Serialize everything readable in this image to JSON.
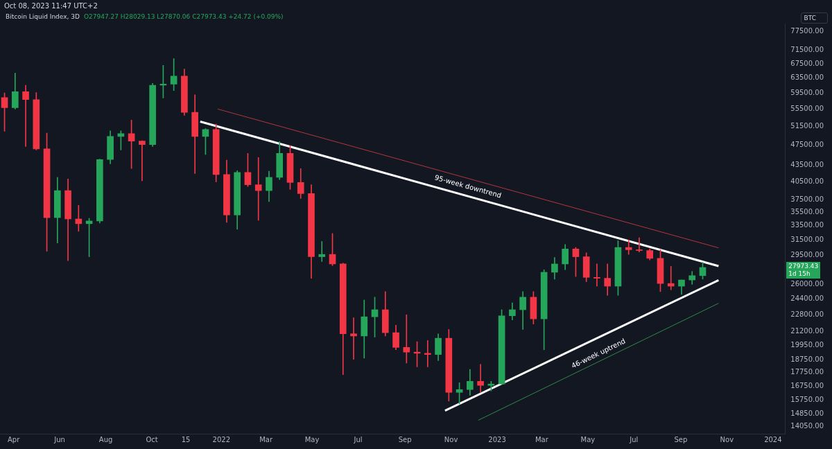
{
  "chart_data": {
    "type": "candlestick",
    "title": "Bitcoin Liquid Index, 3D",
    "subtitle": "O27947.27 H28029.13 L27870.06 C27973.43 +24.72 (+0.09%)",
    "annotations": [
      "Oct 08, 2023 11:47 UTC+2",
      "BTC",
      "27973.43",
      "1d 15h",
      "95-week downtrend",
      "46-week uptrend"
    ],
    "x": [
      "2021-03-20",
      "2021-04-03",
      "2021-04-17",
      "2021-05-01",
      "2021-05-15",
      "2021-05-29",
      "2021-06-12",
      "2021-06-26",
      "2021-07-10",
      "2021-07-24",
      "2021-08-07",
      "2021-08-21",
      "2021-09-04",
      "2021-09-18",
      "2021-10-02",
      "2021-10-16",
      "2021-10-30",
      "2021-11-13",
      "2021-11-27",
      "2021-12-11",
      "2021-12-25",
      "2022-01-08",
      "2022-01-22",
      "2022-02-05",
      "2022-02-19",
      "2022-03-05",
      "2022-03-19",
      "2022-04-02",
      "2022-04-16",
      "2022-04-30",
      "2022-05-14",
      "2022-05-28",
      "2022-06-11",
      "2022-06-25",
      "2022-07-09",
      "2022-07-23",
      "2022-08-06",
      "2022-08-20",
      "2022-09-03",
      "2022-09-17",
      "2022-10-01",
      "2022-10-15",
      "2022-10-29",
      "2022-11-12",
      "2022-11-26",
      "2022-12-10",
      "2022-12-24",
      "2023-01-07",
      "2023-01-21",
      "2023-02-04",
      "2023-02-18",
      "2023-03-04",
      "2023-03-18",
      "2023-04-01",
      "2023-04-15",
      "2023-04-29",
      "2023-05-13",
      "2023-05-27",
      "2023-06-10",
      "2023-06-24",
      "2023-07-08",
      "2023-07-22",
      "2023-08-05",
      "2023-08-19",
      "2023-09-02",
      "2023-09-16",
      "2023-09-30"
    ],
    "ohlc": [
      [
        58300,
        59500,
        50400,
        55800
      ],
      [
        55800,
        64800,
        55500,
        59800
      ],
      [
        59800,
        61500,
        47200,
        57800
      ],
      [
        57800,
        59600,
        46500,
        46700
      ],
      [
        46700,
        50000,
        30000,
        34700
      ],
      [
        34700,
        41300,
        31100,
        39000
      ],
      [
        39000,
        41000,
        28800,
        34500
      ],
      [
        34500,
        36600,
        32700,
        33800
      ],
      [
        33800,
        34600,
        29300,
        34200
      ],
      [
        34200,
        44700,
        33900,
        44600
      ],
      [
        44600,
        50500,
        43800,
        49300
      ],
      [
        49300,
        50500,
        46500,
        49900
      ],
      [
        49900,
        52900,
        42900,
        48300
      ],
      [
        48300,
        48400,
        40700,
        47600
      ],
      [
        47600,
        62000,
        47200,
        61500
      ],
      [
        61500,
        67000,
        58200,
        61800
      ],
      [
        61800,
        69000,
        60100,
        64000
      ],
      [
        64000,
        66000,
        54000,
        54700
      ],
      [
        54700,
        59000,
        42000,
        49300
      ],
      [
        49300,
        51000,
        45600,
        50800
      ],
      [
        50800,
        52000,
        40500,
        41800
      ],
      [
        41800,
        44500,
        34000,
        35100
      ],
      [
        35100,
        42500,
        33000,
        42200
      ],
      [
        42200,
        45800,
        39700,
        40000
      ],
      [
        40000,
        45000,
        34300,
        39000
      ],
      [
        39000,
        42400,
        37200,
        41300
      ],
      [
        41300,
        48200,
        40900,
        45800
      ],
      [
        45800,
        47400,
        39200,
        40400
      ],
      [
        40400,
        42900,
        37700,
        38500
      ],
      [
        38500,
        40000,
        26700,
        29300
      ],
      [
        29300,
        31300,
        28700,
        29600
      ],
      [
        29600,
        32400,
        28200,
        28400
      ],
      [
        28400,
        28500,
        17600,
        21000
      ],
      [
        21000,
        22500,
        18800,
        20800
      ],
      [
        20800,
        24300,
        18900,
        22600
      ],
      [
        22600,
        24600,
        20700,
        23300
      ],
      [
        23300,
        25200,
        20800,
        21100
      ],
      [
        21100,
        21800,
        19600,
        19800
      ],
      [
        19800,
        22800,
        18500,
        19400
      ],
      [
        19400,
        20300,
        18200,
        19300
      ],
      [
        19300,
        20400,
        18200,
        19200
      ],
      [
        19200,
        21000,
        18700,
        20600
      ],
      [
        20600,
        21400,
        15700,
        16300
      ],
      [
        16300,
        17000,
        15500,
        16500
      ],
      [
        16500,
        18000,
        16100,
        17100
      ],
      [
        17100,
        18400,
        16300,
        16800
      ],
      [
        16800,
        17100,
        16400,
        16900
      ],
      [
        16900,
        23300,
        16900,
        22700
      ],
      [
        22700,
        24000,
        22300,
        23300
      ],
      [
        23300,
        25200,
        21400,
        24600
      ],
      [
        24600,
        25200,
        21900,
        22400
      ],
      [
        22400,
        27700,
        19600,
        27400
      ],
      [
        27400,
        29200,
        26600,
        28400
      ],
      [
        28400,
        30900,
        27700,
        30300
      ],
      [
        30300,
        30500,
        26900,
        29300
      ],
      [
        29300,
        29800,
        26300,
        26800
      ],
      [
        26800,
        28400,
        25800,
        26700
      ],
      [
        26700,
        28400,
        24800,
        25800
      ],
      [
        25800,
        31400,
        24800,
        30500
      ],
      [
        30500,
        31500,
        29600,
        30200
      ],
      [
        30200,
        31800,
        29900,
        30100
      ],
      [
        30100,
        30300,
        28900,
        29100
      ],
      [
        29100,
        30200,
        25200,
        26100
      ],
      [
        26100,
        28100,
        25400,
        25800
      ],
      [
        25800,
        26500,
        24900,
        26500
      ],
      [
        26500,
        27500,
        26000,
        27000
      ],
      [
        27000,
        28600,
        26600,
        27973.43
      ]
    ],
    "colors": [
      "#f23645",
      "#26a65b",
      "#f23645",
      "#f23645",
      "#f23645",
      "#26a65b",
      "#f23645",
      "#f23645",
      "#26a65b",
      "#26a65b",
      "#26a65b",
      "#26a65b",
      "#f23645",
      "#f23645",
      "#26a65b",
      "#26a65b",
      "#26a65b",
      "#f23645",
      "#f23645",
      "#26a65b",
      "#f23645",
      "#f23645",
      "#26a65b",
      "#f23645",
      "#f23645",
      "#26a65b",
      "#26a65b",
      "#f23645",
      "#f23645",
      "#f23645",
      "#26a65b",
      "#f23645",
      "#f23645",
      "#f23645",
      "#26a65b",
      "#26a65b",
      "#f23645",
      "#f23645",
      "#f23645",
      "#f23645",
      "#f23645",
      "#26a65b",
      "#f23645",
      "#26a65b",
      "#26a65b",
      "#f23645",
      "#26a65b",
      "#26a65b",
      "#26a65b",
      "#26a65b",
      "#f23645",
      "#26a65b",
      "#26a65b",
      "#26a65b",
      "#f23645",
      "#f23645",
      "#f23645",
      "#f23645",
      "#26a65b",
      "#f23645",
      "#f23645",
      "#f23645",
      "#f23645",
      "#f23645",
      "#26a65b",
      "#26a65b",
      "#26a65b"
    ],
    "series": [
      {
        "type": "line",
        "color": "#ffffff",
        "x": [
          "2021-12-04",
          "2023-10-21"
        ],
        "values": [
          52560,
          28140
        ]
      },
      {
        "type": "line",
        "color": "#ffffff",
        "x": [
          "2022-10-24",
          "2023-10-21"
        ],
        "values": [
          15060,
          26480
        ]
      },
      {
        "type": "line",
        "color": "#b2363e",
        "x": [
          "2021-12-27",
          "2023-10-21"
        ],
        "values": [
          55500,
          30450
        ]
      },
      {
        "type": "line",
        "color": "#2f8a4a",
        "x": [
          "2022-12-07",
          "2023-10-21"
        ],
        "values": [
          14450,
          23960
        ]
      }
    ],
    "xlim": [
      "2021-03-14",
      "2024-01-17"
    ],
    "xticks": [
      {
        "value": "2021-04-01",
        "label": "Apr"
      },
      {
        "value": "2021-06-01",
        "label": "Jun"
      },
      {
        "value": "2021-08-01",
        "label": "Aug"
      },
      {
        "value": "2021-10-01",
        "label": "Oct"
      },
      {
        "value": "2021-11-15",
        "label": "15"
      },
      {
        "value": "2022-01-01",
        "label": "2022"
      },
      {
        "value": "2022-03-01",
        "label": "Mar"
      },
      {
        "value": "2022-05-01",
        "label": "May"
      },
      {
        "value": "2022-07-01",
        "label": "Jul"
      },
      {
        "value": "2022-09-01",
        "label": "Sep"
      },
      {
        "value": "2022-11-01",
        "label": "Nov"
      },
      {
        "value": "2023-01-01",
        "label": "2023"
      },
      {
        "value": "2023-03-01",
        "label": "Mar"
      },
      {
        "value": "2023-05-01",
        "label": "May"
      },
      {
        "value": "2023-07-01",
        "label": "Jul"
      },
      {
        "value": "2023-09-01",
        "label": "Sep"
      },
      {
        "value": "2023-11-01",
        "label": "Nov"
      },
      {
        "value": "2024-01-01",
        "label": "2024"
      }
    ],
    "ylim": [
      13630,
      80300
    ],
    "yticks": [
      {
        "value": 14050,
        "label": "14050.00"
      },
      {
        "value": 14850,
        "label": "14850.00"
      },
      {
        "value": 15750,
        "label": "15750.00"
      },
      {
        "value": 16750,
        "label": "16750.00"
      },
      {
        "value": 17750,
        "label": "17750.00"
      },
      {
        "value": 18750,
        "label": "18750.00"
      },
      {
        "value": 19950,
        "label": "19950.00"
      },
      {
        "value": 21200,
        "label": "21200.00"
      },
      {
        "value": 22800,
        "label": "22800.00"
      },
      {
        "value": 24400,
        "label": "24400.00"
      },
      {
        "value": 26000,
        "label": "26000.00"
      },
      {
        "value": 29500,
        "label": "29500.00"
      },
      {
        "value": 31500,
        "label": "31500.00"
      },
      {
        "value": 33500,
        "label": "33500.00"
      },
      {
        "value": 35500,
        "label": "35500.00"
      },
      {
        "value": 37500,
        "label": "37500.00"
      },
      {
        "value": 40500,
        "label": "40500.00"
      },
      {
        "value": 43500,
        "label": "43500.00"
      },
      {
        "value": 47500,
        "label": "47500.00"
      },
      {
        "value": 51500,
        "label": "51500.00"
      },
      {
        "value": 55500,
        "label": "55500.00"
      },
      {
        "value": 59500,
        "label": "59500.00"
      },
      {
        "value": 63500,
        "label": "63500.00"
      },
      {
        "value": 67500,
        "label": "67500.00"
      },
      {
        "value": 71500,
        "label": "71500.00"
      },
      {
        "value": 77500,
        "label": "77500.00"
      }
    ],
    "log": "y",
    "grid": false,
    "legend": false
  }
}
